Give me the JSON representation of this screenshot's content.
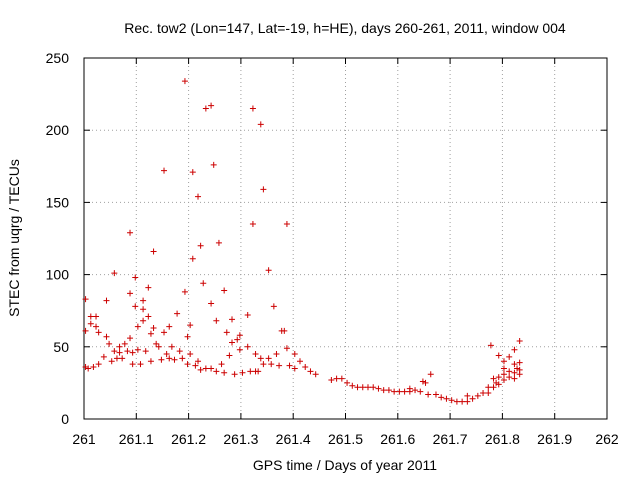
{
  "chart_data": {
    "type": "scatter",
    "title": "Rec. tow2 (Lon=147, Lat=-19, h=HE), days 260-261, 2011, window 004",
    "xlabel": "GPS time / Days of year 2011",
    "ylabel": "STEC from uqrg / TECUs",
    "xlim": [
      261,
      262
    ],
    "ylim": [
      0,
      250
    ],
    "xticks": [
      261,
      261.1,
      261.2,
      261.3,
      261.4,
      261.5,
      261.6,
      261.7,
      261.8,
      261.9,
      262
    ],
    "xtick_labels": [
      "261",
      "261.1",
      "261.2",
      "261.3",
      "261.4",
      "261.5",
      "261.6",
      "261.7",
      "261.8",
      "261.9",
      "262"
    ],
    "yticks": [
      0,
      50,
      100,
      150,
      200,
      250
    ],
    "ytick_labels": [
      "0",
      "50",
      "100",
      "150",
      "200",
      "250"
    ],
    "grid": true,
    "marker": "+",
    "color": "#cc0000",
    "series": [
      {
        "name": "STEC",
        "points": [
          [
            261.003,
            83
          ],
          [
            261.003,
            61
          ],
          [
            261.003,
            36
          ],
          [
            261.008,
            35
          ],
          [
            261.013,
            66
          ],
          [
            261.013,
            71
          ],
          [
            261.018,
            36
          ],
          [
            261.023,
            64
          ],
          [
            261.023,
            71
          ],
          [
            261.028,
            60
          ],
          [
            261.028,
            38
          ],
          [
            261.038,
            43
          ],
          [
            261.043,
            82
          ],
          [
            261.043,
            57
          ],
          [
            261.048,
            52
          ],
          [
            261.053,
            40
          ],
          [
            261.058,
            101
          ],
          [
            261.058,
            47
          ],
          [
            261.063,
            42
          ],
          [
            261.068,
            50
          ],
          [
            261.068,
            46
          ],
          [
            261.073,
            42
          ],
          [
            261.078,
            52
          ],
          [
            261.083,
            47
          ],
          [
            261.088,
            129
          ],
          [
            261.088,
            87
          ],
          [
            261.088,
            56
          ],
          [
            261.093,
            46
          ],
          [
            261.093,
            38
          ],
          [
            261.098,
            98
          ],
          [
            261.098,
            78
          ],
          [
            261.103,
            64
          ],
          [
            261.103,
            48
          ],
          [
            261.108,
            38
          ],
          [
            261.113,
            82
          ],
          [
            261.113,
            76
          ],
          [
            261.113,
            68
          ],
          [
            261.118,
            47
          ],
          [
            261.123,
            91
          ],
          [
            261.123,
            71
          ],
          [
            261.128,
            59
          ],
          [
            261.128,
            40
          ],
          [
            261.133,
            116
          ],
          [
            261.133,
            63
          ],
          [
            261.138,
            52
          ],
          [
            261.143,
            50
          ],
          [
            261.148,
            41
          ],
          [
            261.153,
            172
          ],
          [
            261.153,
            60
          ],
          [
            261.158,
            45
          ],
          [
            261.163,
            64
          ],
          [
            261.163,
            42
          ],
          [
            261.168,
            50
          ],
          [
            261.173,
            41
          ],
          [
            261.178,
            73
          ],
          [
            261.183,
            47
          ],
          [
            261.188,
            42
          ],
          [
            261.193,
            234
          ],
          [
            261.193,
            88
          ],
          [
            261.198,
            57
          ],
          [
            261.198,
            38
          ],
          [
            261.203,
            65
          ],
          [
            261.203,
            45
          ],
          [
            261.208,
            171
          ],
          [
            261.208,
            111
          ],
          [
            261.213,
            37
          ],
          [
            261.218,
            154
          ],
          [
            261.218,
            40
          ],
          [
            261.223,
            120
          ],
          [
            261.223,
            34
          ],
          [
            261.228,
            94
          ],
          [
            261.233,
            215
          ],
          [
            261.233,
            35
          ],
          [
            261.243,
            217
          ],
          [
            261.243,
            80
          ],
          [
            261.243,
            35
          ],
          [
            261.248,
            176
          ],
          [
            261.253,
            68
          ],
          [
            261.253,
            33
          ],
          [
            261.258,
            122
          ],
          [
            261.263,
            38
          ],
          [
            261.268,
            89
          ],
          [
            261.268,
            32
          ],
          [
            261.273,
            60
          ],
          [
            261.278,
            44
          ],
          [
            261.283,
            53
          ],
          [
            261.283,
            69
          ],
          [
            261.288,
            31
          ],
          [
            261.293,
            55
          ],
          [
            261.298,
            58
          ],
          [
            261.298,
            48
          ],
          [
            261.303,
            32
          ],
          [
            261.313,
            72
          ],
          [
            261.313,
            50
          ],
          [
            261.318,
            33
          ],
          [
            261.323,
            215
          ],
          [
            261.323,
            135
          ],
          [
            261.328,
            45
          ],
          [
            261.328,
            33
          ],
          [
            261.333,
            33
          ],
          [
            261.338,
            204
          ],
          [
            261.338,
            42
          ],
          [
            261.343,
            159
          ],
          [
            261.343,
            38
          ],
          [
            261.353,
            103
          ],
          [
            261.353,
            42
          ],
          [
            261.358,
            38
          ],
          [
            261.363,
            78
          ],
          [
            261.368,
            45
          ],
          [
            261.373,
            37
          ],
          [
            261.378,
            61
          ],
          [
            261.383,
            61
          ],
          [
            261.388,
            135
          ],
          [
            261.388,
            49
          ],
          [
            261.393,
            37
          ],
          [
            261.403,
            45
          ],
          [
            261.403,
            35
          ],
          [
            261.413,
            40
          ],
          [
            261.423,
            36
          ],
          [
            261.433,
            33
          ],
          [
            261.443,
            31
          ],
          [
            261.473,
            27
          ],
          [
            261.483,
            28
          ],
          [
            261.493,
            28
          ],
          [
            261.503,
            25
          ],
          [
            261.513,
            23
          ],
          [
            261.523,
            22
          ],
          [
            261.533,
            22
          ],
          [
            261.543,
            22
          ],
          [
            261.553,
            22
          ],
          [
            261.563,
            21
          ],
          [
            261.573,
            20
          ],
          [
            261.583,
            20
          ],
          [
            261.593,
            19
          ],
          [
            261.603,
            19
          ],
          [
            261.613,
            19
          ],
          [
            261.623,
            21
          ],
          [
            261.623,
            19
          ],
          [
            261.633,
            20
          ],
          [
            261.643,
            19
          ],
          [
            261.648,
            26
          ],
          [
            261.653,
            25
          ],
          [
            261.658,
            17
          ],
          [
            261.663,
            31
          ],
          [
            261.673,
            17
          ],
          [
            261.683,
            15
          ],
          [
            261.693,
            14
          ],
          [
            261.703,
            13
          ],
          [
            261.713,
            12
          ],
          [
            261.723,
            12
          ],
          [
            261.733,
            16
          ],
          [
            261.733,
            12
          ],
          [
            261.743,
            14
          ],
          [
            261.753,
            16
          ],
          [
            261.763,
            18
          ],
          [
            261.773,
            22
          ],
          [
            261.773,
            18
          ],
          [
            261.778,
            51
          ],
          [
            261.783,
            28
          ],
          [
            261.783,
            22
          ],
          [
            261.788,
            25
          ],
          [
            261.793,
            44
          ],
          [
            261.793,
            29
          ],
          [
            261.793,
            24
          ],
          [
            261.803,
            40
          ],
          [
            261.803,
            35
          ],
          [
            261.803,
            31
          ],
          [
            261.803,
            27
          ],
          [
            261.813,
            43
          ],
          [
            261.813,
            33
          ],
          [
            261.813,
            29
          ],
          [
            261.823,
            48
          ],
          [
            261.823,
            38
          ],
          [
            261.823,
            32
          ],
          [
            261.823,
            28
          ],
          [
            261.828,
            35
          ],
          [
            261.833,
            54
          ],
          [
            261.833,
            39
          ],
          [
            261.833,
            34
          ],
          [
            261.833,
            31
          ]
        ]
      }
    ]
  }
}
